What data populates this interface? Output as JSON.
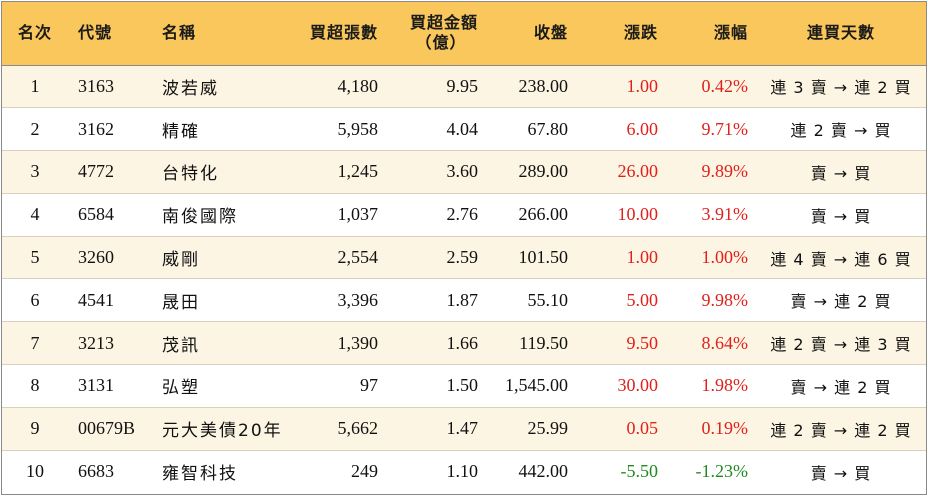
{
  "headers": {
    "rank": "名次",
    "code": "代號",
    "name": "名稱",
    "net_lots": "買超張數",
    "net_amount_line1": "買超金額",
    "net_amount_line2": "（億）",
    "close": "收盤",
    "change": "漲跌",
    "pct": "漲幅",
    "streak": "連買天數"
  },
  "colors": {
    "header_bg": "#f9c75b",
    "odd_row_bg": "#fdf5e4",
    "up": "#e0201a",
    "down": "#1f8a1f"
  },
  "rows": [
    {
      "rank": "1",
      "code": "3163",
      "name": "波若威",
      "net_lots": "4,180",
      "net_amount": "9.95",
      "close": "238.00",
      "change": "1.00",
      "pct": "0.42%",
      "streak": "連 3 賣 → 連 2 買",
      "dir": "up"
    },
    {
      "rank": "2",
      "code": "3162",
      "name": "精確",
      "net_lots": "5,958",
      "net_amount": "4.04",
      "close": "67.80",
      "change": "6.00",
      "pct": "9.71%",
      "streak": "連 2 賣 → 買",
      "dir": "up"
    },
    {
      "rank": "3",
      "code": "4772",
      "name": "台特化",
      "net_lots": "1,245",
      "net_amount": "3.60",
      "close": "289.00",
      "change": "26.00",
      "pct": "9.89%",
      "streak": "賣 → 買",
      "dir": "up"
    },
    {
      "rank": "4",
      "code": "6584",
      "name": "南俊國際",
      "net_lots": "1,037",
      "net_amount": "2.76",
      "close": "266.00",
      "change": "10.00",
      "pct": "3.91%",
      "streak": "賣 → 買",
      "dir": "up"
    },
    {
      "rank": "5",
      "code": "3260",
      "name": "威剛",
      "net_lots": "2,554",
      "net_amount": "2.59",
      "close": "101.50",
      "change": "1.00",
      "pct": "1.00%",
      "streak": "連 4 賣 → 連 6 買",
      "dir": "up"
    },
    {
      "rank": "6",
      "code": "4541",
      "name": "晟田",
      "net_lots": "3,396",
      "net_amount": "1.87",
      "close": "55.10",
      "change": "5.00",
      "pct": "9.98%",
      "streak": "賣 → 連 2 買",
      "dir": "up"
    },
    {
      "rank": "7",
      "code": "3213",
      "name": "茂訊",
      "net_lots": "1,390",
      "net_amount": "1.66",
      "close": "119.50",
      "change": "9.50",
      "pct": "8.64%",
      "streak": "連 2 賣 → 連 3 買",
      "dir": "up"
    },
    {
      "rank": "8",
      "code": "3131",
      "name": "弘塑",
      "net_lots": "97",
      "net_amount": "1.50",
      "close": "1,545.00",
      "change": "30.00",
      "pct": "1.98%",
      "streak": "賣 → 連 2 買",
      "dir": "up"
    },
    {
      "rank": "9",
      "code": "00679B",
      "name": "元大美債20年",
      "net_lots": "5,662",
      "net_amount": "1.47",
      "close": "25.99",
      "change": "0.05",
      "pct": "0.19%",
      "streak": "連 2 賣 → 連 2 買",
      "dir": "up"
    },
    {
      "rank": "10",
      "code": "6683",
      "name": "雍智科技",
      "net_lots": "249",
      "net_amount": "1.10",
      "close": "442.00",
      "change": "-5.50",
      "pct": "-1.23%",
      "streak": "賣 → 買",
      "dir": "down"
    }
  ]
}
